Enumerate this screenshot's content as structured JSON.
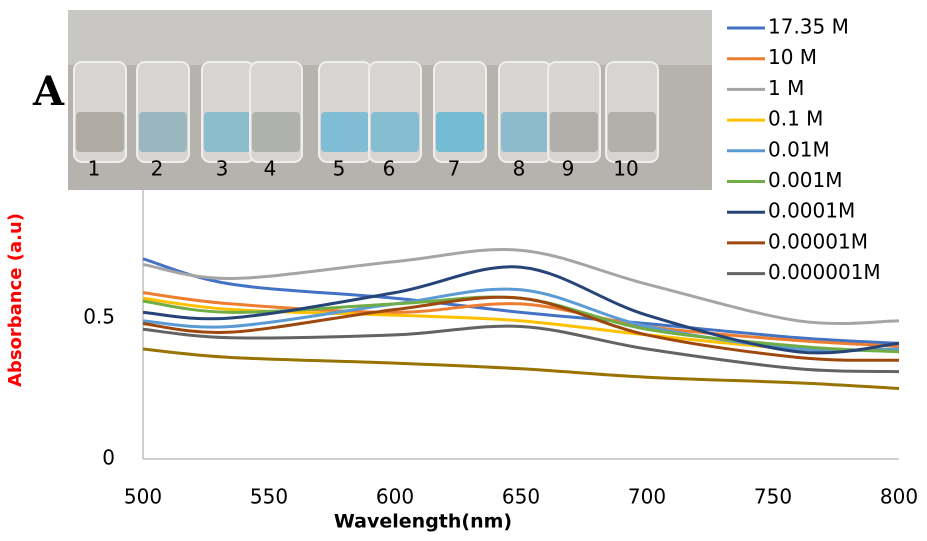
{
  "chart_data": {
    "type": "line",
    "x_label": "Wavelength(nm)",
    "y_label": "Absorbance (a.u)",
    "annotations": [
      "A"
    ],
    "inset_labels": [
      "1",
      "2",
      "3",
      "4",
      "5",
      "6",
      "7",
      "8",
      "9",
      "10"
    ],
    "x": [
      500,
      535,
      600,
      650,
      700,
      760,
      800
    ],
    "xlim": [
      500,
      800
    ],
    "xticks": [
      500,
      550,
      600,
      650,
      700,
      750,
      800
    ],
    "ylim": [
      0,
      1
    ],
    "yticks": [
      0,
      0.5
    ],
    "grid": false,
    "legend": "right",
    "series": [
      {
        "name": "17.35 M",
        "color": "#4472c4",
        "values": [
          0.71,
          0.62,
          0.57,
          0.52,
          0.48,
          0.43,
          0.41
        ]
      },
      {
        "name": "10 M",
        "color": "#ed7d31",
        "values": [
          0.59,
          0.55,
          0.52,
          0.55,
          0.47,
          0.42,
          0.4
        ]
      },
      {
        "name": "1 M",
        "color": "#a5a5a5",
        "values": [
          0.69,
          0.64,
          0.7,
          0.74,
          0.62,
          0.49,
          0.49
        ]
      },
      {
        "name": "0.1 M",
        "color": "#ffc000",
        "values": [
          0.57,
          0.53,
          0.51,
          0.49,
          0.44,
          0.39,
          0.39
        ]
      },
      {
        "name": "0.01M",
        "color": "#5b9bd5",
        "values": [
          0.49,
          0.47,
          0.55,
          0.6,
          0.47,
          0.39,
          0.39
        ]
      },
      {
        "name": "0.001M",
        "color": "#70ad47",
        "values": [
          0.56,
          0.52,
          0.55,
          0.57,
          0.46,
          0.4,
          0.38
        ]
      },
      {
        "name": "0.0001M",
        "color": "#264478",
        "values": [
          0.52,
          0.5,
          0.59,
          0.68,
          0.51,
          0.38,
          0.41
        ]
      },
      {
        "name": "0.00001M",
        "color": "#9e480e",
        "values": [
          0.48,
          0.45,
          0.53,
          0.57,
          0.44,
          0.36,
          0.35
        ]
      },
      {
        "name": "0.000001M",
        "color": "#636363",
        "values": [
          0.46,
          0.43,
          0.44,
          0.47,
          0.39,
          0.32,
          0.31
        ]
      },
      {
        "color": "#997300",
        "values": [
          0.39,
          0.36,
          0.34,
          0.32,
          0.29,
          0.27,
          0.25
        ]
      }
    ]
  }
}
